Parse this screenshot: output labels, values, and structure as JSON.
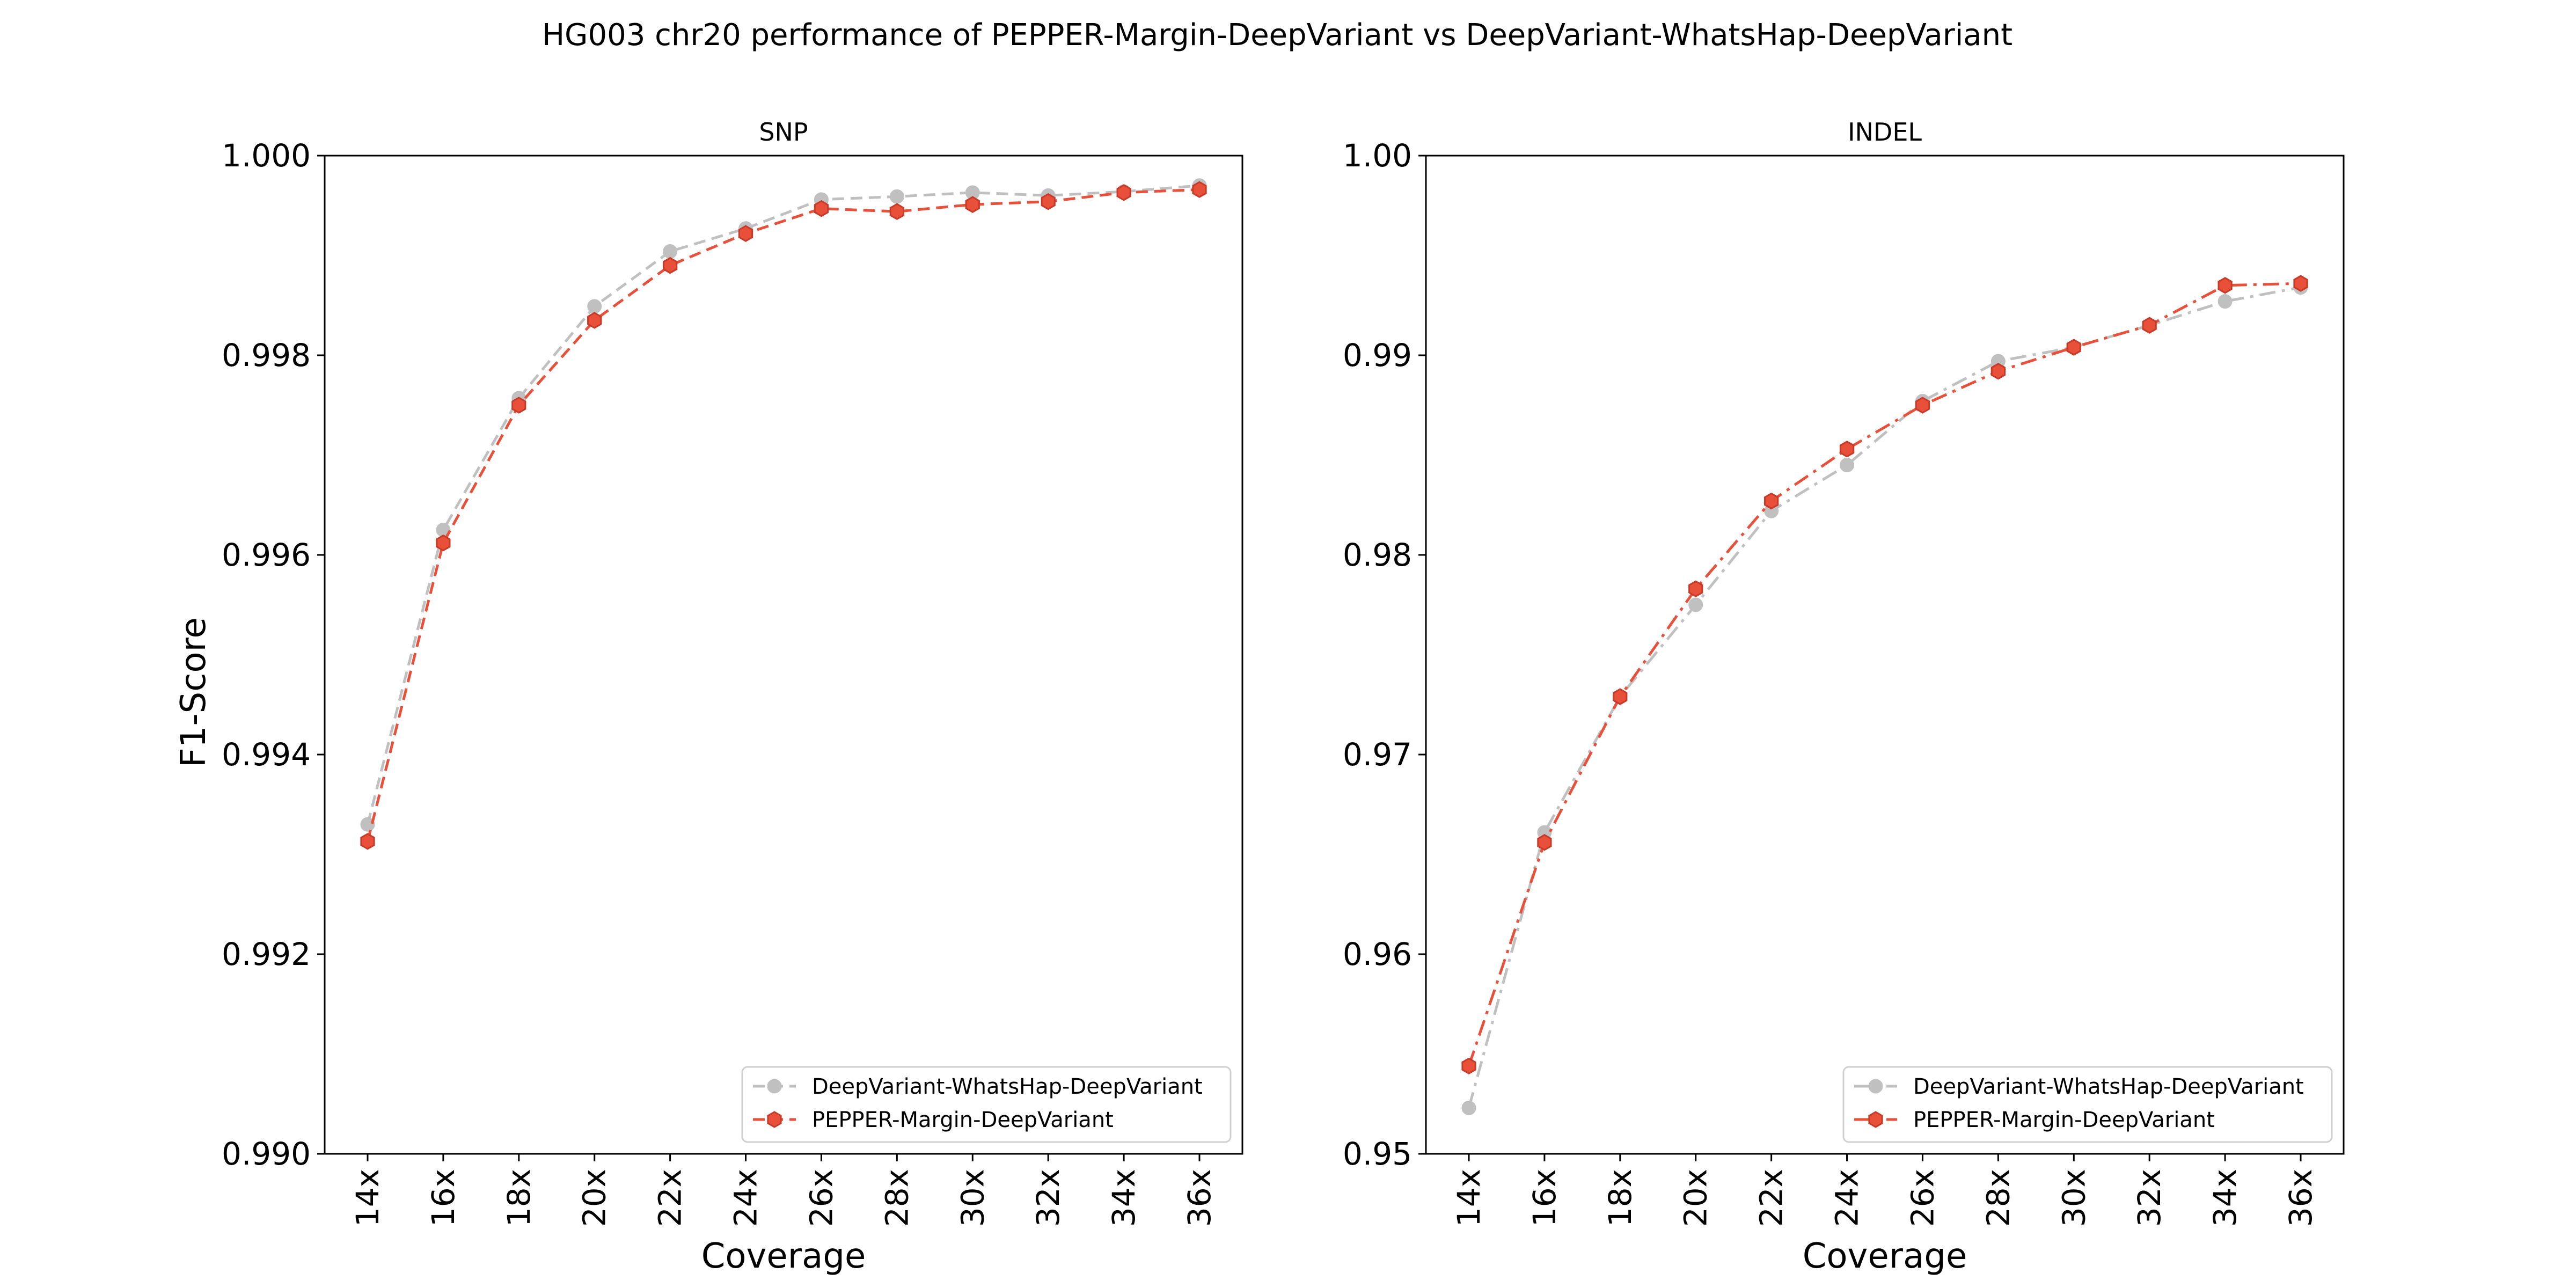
{
  "figure": {
    "title": "HG003 chr20 performance of PEPPER-Margin-DeepVariant vs DeepVariant-WhatsHap-DeepVariant"
  },
  "chart_data": [
    {
      "type": "line",
      "title": "SNP",
      "xlabel": "Coverage",
      "ylabel": "F1-Score",
      "categories": [
        "14x",
        "16x",
        "18x",
        "20x",
        "22x",
        "24x",
        "26x",
        "28x",
        "30x",
        "32x",
        "34x",
        "36x"
      ],
      "ylim": [
        0.99,
        1.0
      ],
      "yticks": [
        0.99,
        0.992,
        0.994,
        0.996,
        0.998,
        1.0
      ],
      "ytick_labels": [
        "0.990",
        "0.992",
        "0.994",
        "0.996",
        "0.998",
        "1.000"
      ],
      "legend_position": "lower-right",
      "grid": false,
      "series": [
        {
          "name": "DeepVariant-WhatsHap-DeepVariant",
          "color": "#c0c0c0",
          "marker": "circle",
          "linestyle": "dashed",
          "values": [
            0.9933,
            0.99625,
            0.99757,
            0.99849,
            0.99904,
            0.99927,
            0.99956,
            0.99959,
            0.99963,
            0.9996,
            0.99964,
            0.9997
          ]
        },
        {
          "name": "PEPPER-Margin-DeepVariant",
          "color": "#e8503a",
          "marker": "hexagon",
          "linestyle": "dashed",
          "values": [
            0.99313,
            0.99612,
            0.9975,
            0.99835,
            0.9989,
            0.99922,
            0.99947,
            0.99944,
            0.99951,
            0.99954,
            0.99963,
            0.99966
          ]
        }
      ]
    },
    {
      "type": "line",
      "title": "INDEL",
      "xlabel": "Coverage",
      "ylabel": "",
      "categories": [
        "14x",
        "16x",
        "18x",
        "20x",
        "22x",
        "24x",
        "26x",
        "28x",
        "30x",
        "32x",
        "34x",
        "36x"
      ],
      "ylim": [
        0.95,
        1.0
      ],
      "yticks": [
        0.95,
        0.96,
        0.97,
        0.98,
        0.99,
        1.0
      ],
      "ytick_labels": [
        "0.95",
        "0.96",
        "0.97",
        "0.98",
        "0.99",
        "1.00"
      ],
      "legend_position": "lower-right",
      "grid": false,
      "series": [
        {
          "name": "DeepVariant-WhatsHap-DeepVariant",
          "color": "#c0c0c0",
          "marker": "circle",
          "linestyle": "dashdot",
          "values": [
            0.9523,
            0.9661,
            0.9729,
            0.9775,
            0.9822,
            0.9845,
            0.9877,
            0.9897,
            0.9904,
            0.9915,
            0.9927,
            0.9934
          ]
        },
        {
          "name": "PEPPER-Margin-DeepVariant",
          "color": "#e8503a",
          "marker": "hexagon",
          "linestyle": "dashdot",
          "values": [
            0.9544,
            0.9656,
            0.9729,
            0.9783,
            0.9827,
            0.9853,
            0.9875,
            0.9892,
            0.9904,
            0.9915,
            0.9935,
            0.9936
          ]
        }
      ]
    }
  ]
}
